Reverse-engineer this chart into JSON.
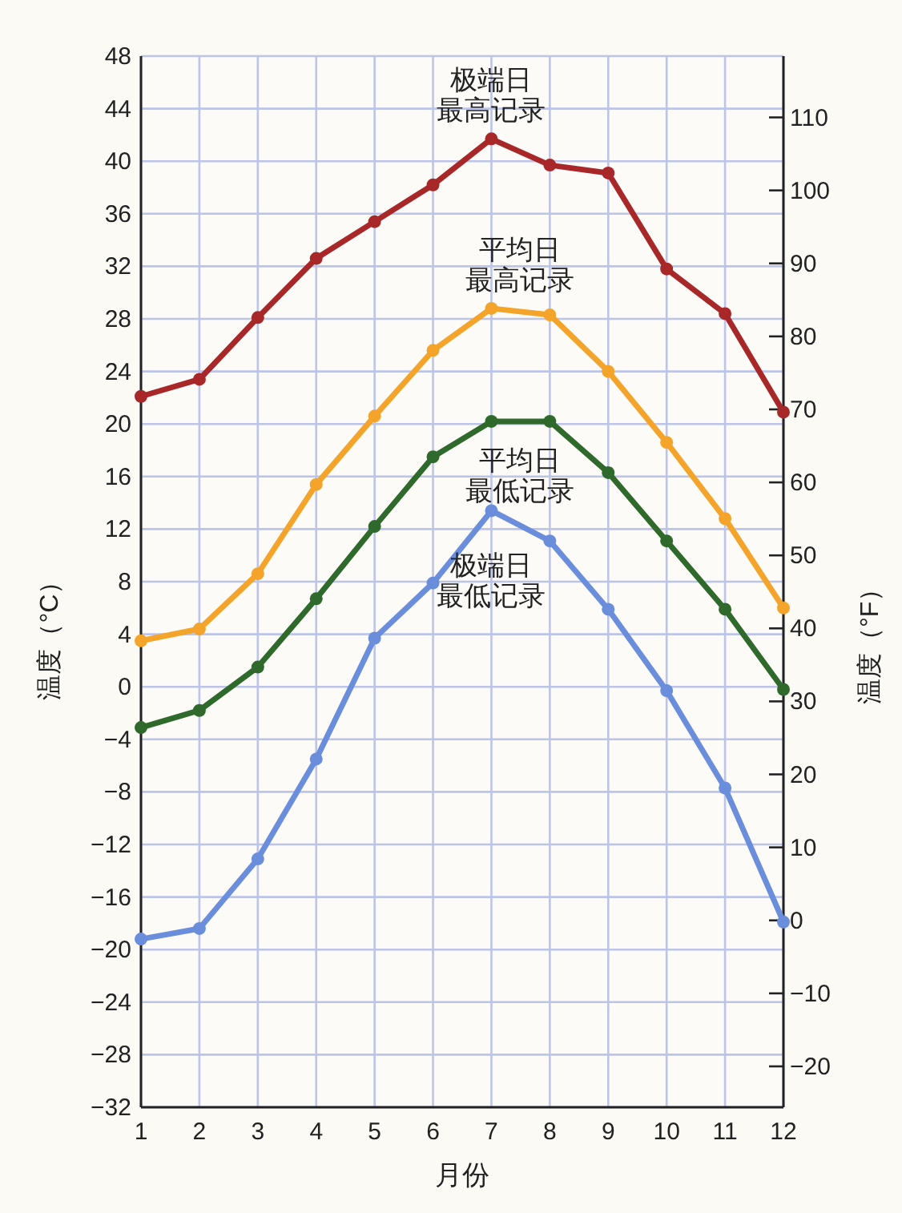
{
  "chart_data": {
    "type": "line",
    "xlabel": "月份",
    "ylabel": "温度（°C）",
    "y2label": "温度（°F）",
    "x": [
      1,
      2,
      3,
      4,
      5,
      6,
      7,
      8,
      9,
      10,
      11,
      12
    ],
    "xlim": [
      1,
      12
    ],
    "xticks": [
      1,
      2,
      3,
      4,
      5,
      6,
      7,
      8,
      9,
      10,
      11,
      12
    ],
    "ylim": [
      -32,
      48
    ],
    "yticks": [
      -32,
      -28,
      -24,
      -20,
      -16,
      -12,
      -8,
      -4,
      0,
      4,
      8,
      12,
      16,
      20,
      24,
      28,
      32,
      36,
      40,
      44,
      48
    ],
    "y2lim": [
      -25.6,
      118.4
    ],
    "y2ticks": [
      -20,
      -10,
      0,
      10,
      20,
      30,
      40,
      50,
      60,
      70,
      80,
      90,
      100,
      110
    ],
    "grid": true,
    "marker": "circle",
    "line_style": "solid",
    "series": [
      {
        "name": "极端日最高记录",
        "color": "#a8282a",
        "values": [
          22.1,
          23.4,
          28.1,
          32.6,
          35.4,
          38.2,
          41.7,
          39.7,
          39.1,
          31.8,
          28.4,
          20.9
        ]
      },
      {
        "name": "平均日最高记录",
        "color": "#f4a42a",
        "values": [
          3.5,
          4.4,
          8.6,
          15.4,
          20.6,
          25.6,
          28.8,
          28.3,
          24.0,
          18.6,
          12.8,
          6.0
        ]
      },
      {
        "name": "平均日最低记录",
        "color": "#2f6a2c",
        "values": [
          -3.1,
          -1.8,
          1.5,
          6.7,
          12.2,
          17.5,
          20.2,
          20.2,
          16.3,
          11.1,
          5.9,
          -0.2
        ]
      },
      {
        "name": "极端日最低记录",
        "color": "#6a8edc",
        "values": [
          -19.2,
          -18.4,
          -13.1,
          -5.5,
          3.7,
          7.9,
          13.4,
          11.1,
          5.9,
          -0.3,
          -7.7,
          -17.9
        ]
      }
    ]
  }
}
